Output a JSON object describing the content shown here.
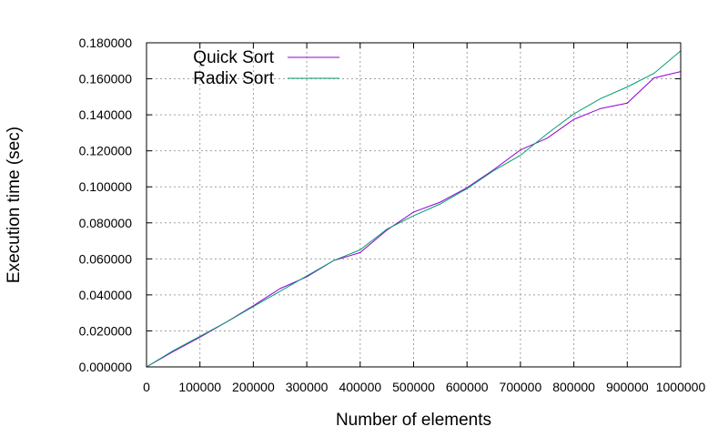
{
  "chart_data": {
    "type": "line",
    "title": "",
    "xlabel": "Number of elements",
    "ylabel": "Execution time (sec)",
    "xlim": [
      0,
      1000000
    ],
    "ylim": [
      0,
      0.18
    ],
    "grid": true,
    "legend_position": "top-left",
    "x_ticks": [
      0,
      100000,
      200000,
      300000,
      400000,
      500000,
      600000,
      700000,
      800000,
      900000,
      1000000
    ],
    "x_tick_labels": [
      "0",
      "100000",
      "200000",
      "300000",
      "400000",
      "500000",
      "600000",
      "700000",
      "800000",
      "900000",
      "1000000"
    ],
    "y_ticks": [
      0,
      0.02,
      0.04,
      0.06,
      0.08,
      0.1,
      0.12,
      0.14,
      0.16,
      0.18
    ],
    "y_tick_labels": [
      "0.000000",
      "0.020000",
      "0.040000",
      "0.060000",
      "0.080000",
      "0.100000",
      "0.120000",
      "0.140000",
      "0.160000",
      "0.180000"
    ],
    "x": [
      0,
      50000,
      100000,
      150000,
      200000,
      250000,
      300000,
      350000,
      400000,
      450000,
      500000,
      550000,
      600000,
      650000,
      700000,
      750000,
      800000,
      850000,
      900000,
      950000,
      1000000
    ],
    "series": [
      {
        "name": "Quick Sort",
        "color": "#9400d3",
        "values": [
          0,
          0.0085,
          0.0165,
          0.025,
          0.034,
          0.0435,
          0.05,
          0.059,
          0.0635,
          0.076,
          0.086,
          0.0915,
          0.0995,
          0.1095,
          0.1205,
          0.127,
          0.1375,
          0.1435,
          0.1465,
          0.1605,
          0.164
        ]
      },
      {
        "name": "Radix Sort",
        "color": "#009e73",
        "values": [
          0,
          0.009,
          0.017,
          0.025,
          0.0335,
          0.042,
          0.0505,
          0.059,
          0.065,
          0.0765,
          0.084,
          0.0905,
          0.099,
          0.109,
          0.1175,
          0.1295,
          0.1405,
          0.149,
          0.1555,
          0.163,
          0.1755
        ]
      }
    ]
  }
}
